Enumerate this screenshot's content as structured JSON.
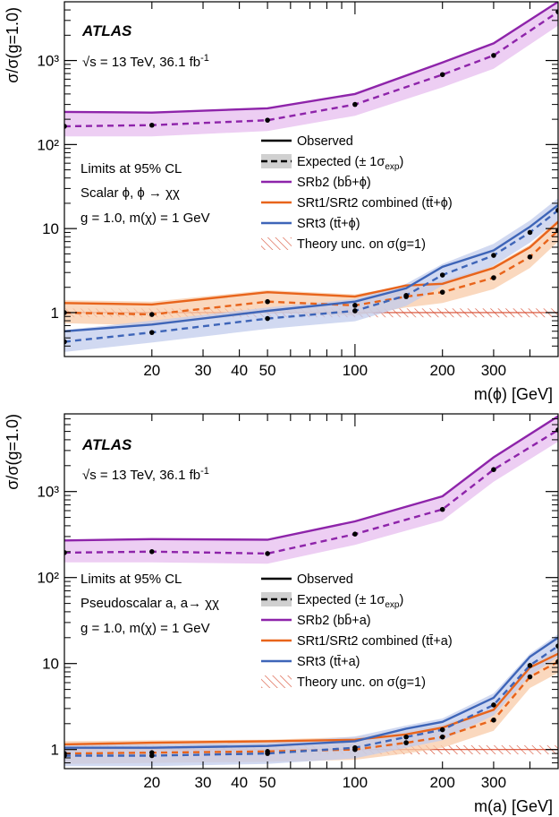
{
  "colors": {
    "SRb2": "#8E24AA",
    "SRb2_band": "#E7BDEF",
    "SRt12": "#E8641B",
    "SRt12_band": "#F8CBA8",
    "SRt3": "#3E65B8",
    "SRt3_band": "#C2CCEC",
    "theory": "#D6492D",
    "expected_band": "#D0D0D0"
  },
  "chart_data": [
    {
      "type": "line",
      "atlas_label": "ATLAS",
      "energy_label": "√s = 13 TeV, 36.1 fb",
      "energy_sup": "-1",
      "info_lines": [
        "Limits at 95% CL",
        "Scalar ϕ, ϕ → χχ",
        "g = 1.0,  m(χ) = 1 GeV"
      ],
      "xlabel": "m(ϕ) [GeV]",
      "ylabel": "σ/σ(g=1.0)",
      "x_scale": "log",
      "y_scale": "log",
      "xlim": [
        10,
        500
      ],
      "ylim": [
        0.3,
        5000
      ],
      "x_ticks": [
        20,
        30,
        40,
        50,
        100,
        200,
        300
      ],
      "x_tick_labels": [
        "20",
        "30",
        "40",
        "50",
        "100",
        "200",
        "300"
      ],
      "y_tick_labels": [
        "1",
        "10",
        "10²",
        "10³"
      ],
      "legend": [
        {
          "label": "Observed",
          "style": "observed"
        },
        {
          "label": "Expected (± 1σ",
          "sub": "exp",
          "tail": ")",
          "style": "expected"
        },
        {
          "label": "SRb2 (bb̄+ϕ)",
          "style": "SRb2"
        },
        {
          "label": "SRt1/SRt2 combined (tt̄+ϕ)",
          "style": "SRt12"
        },
        {
          "label": "SRt3 (tt̄+ϕ)",
          "style": "SRt3"
        },
        {
          "label": "Theory unc. on σ(g=1)",
          "style": "theory"
        }
      ],
      "theory_band": [
        0.88,
        1.12
      ],
      "series": [
        {
          "name": "SRb2 (bb̄+ϕ)",
          "key": "SRb2",
          "x": [
            10,
            20,
            50,
            100,
            200,
            300,
            500
          ],
          "observed": [
            245,
            240,
            270,
            400,
            950,
            1600,
            5000
          ],
          "expected": [
            165,
            170,
            195,
            300,
            680,
            1150,
            3800
          ],
          "band_lo": [
            125,
            125,
            145,
            220,
            480,
            800,
            2600
          ],
          "band_hi": [
            240,
            240,
            270,
            410,
            950,
            1600,
            5000
          ]
        },
        {
          "name": "SRt1/SRt2 combined (tt̄+ϕ)",
          "key": "SRt12",
          "x": [
            10,
            20,
            50,
            100,
            150,
            200,
            300,
            400,
            500
          ],
          "observed": [
            1.3,
            1.25,
            1.75,
            1.55,
            2.1,
            2.2,
            3.4,
            6.0,
            12.0
          ],
          "expected": [
            1.0,
            0.95,
            1.35,
            1.22,
            1.55,
            1.75,
            2.6,
            4.6,
            9.5
          ],
          "band_lo": [
            0.75,
            0.7,
            1.0,
            0.92,
            1.15,
            1.3,
            1.9,
            3.4,
            7.0
          ],
          "band_hi": [
            1.4,
            1.35,
            1.85,
            1.65,
            2.1,
            2.4,
            3.6,
            6.4,
            13.0
          ]
        },
        {
          "name": "SRt3 (tt̄+ϕ)",
          "key": "SRt3",
          "x": [
            10,
            20,
            50,
            100,
            150,
            200,
            300,
            400,
            500
          ],
          "observed": [
            0.6,
            0.72,
            1.05,
            1.35,
            1.95,
            3.5,
            5.5,
            10.5,
            19.0
          ],
          "expected": [
            0.45,
            0.58,
            0.85,
            1.05,
            1.6,
            2.8,
            4.8,
            9.0,
            16.5
          ],
          "band_lo": [
            0.34,
            0.44,
            0.64,
            0.79,
            1.2,
            2.1,
            3.6,
            6.8,
            12.5
          ],
          "band_hi": [
            0.62,
            0.8,
            1.15,
            1.45,
            2.2,
            3.8,
            6.6,
            12.5,
            23.0
          ]
        }
      ]
    },
    {
      "type": "line",
      "atlas_label": "ATLAS",
      "energy_label": "√s = 13 TeV, 36.1 fb",
      "energy_sup": "-1",
      "info_lines": [
        "Limits at 95% CL",
        "Pseudoscalar a, a→ χχ",
        "g = 1.0,  m(χ) = 1 GeV"
      ],
      "xlabel": "m(a) [GeV]",
      "ylabel": "σ/σ(g=1.0)",
      "x_scale": "log",
      "y_scale": "log",
      "xlim": [
        10,
        500
      ],
      "ylim": [
        0.6,
        8000
      ],
      "x_ticks": [
        20,
        30,
        40,
        50,
        100,
        200,
        300
      ],
      "x_tick_labels": [
        "20",
        "30",
        "40",
        "50",
        "100",
        "200",
        "300"
      ],
      "y_tick_labels": [
        "1",
        "10",
        "10²",
        "10³"
      ],
      "legend": [
        {
          "label": "Observed",
          "style": "observed"
        },
        {
          "label": "Expected (± 1σ",
          "sub": "exp",
          "tail": ")",
          "style": "expected"
        },
        {
          "label": "SRb2 (bb̄+a)",
          "style": "SRb2"
        },
        {
          "label": "SRt1/SRt2 combined (tt̄+a)",
          "style": "SRt12"
        },
        {
          "label": "SRt3 (tt̄+a)",
          "style": "SRt3"
        },
        {
          "label": "Theory unc. on σ(g=1)",
          "style": "theory"
        }
      ],
      "theory_band": [
        0.88,
        1.12
      ],
      "series": [
        {
          "name": "SRb2 (bb̄+a)",
          "key": "SRb2",
          "x": [
            10,
            20,
            50,
            100,
            200,
            300,
            500
          ],
          "observed": [
            270,
            280,
            275,
            450,
            880,
            2500,
            7500
          ],
          "expected": [
            195,
            200,
            190,
            320,
            620,
            1800,
            5200
          ],
          "band_lo": [
            150,
            150,
            145,
            240,
            460,
            1300,
            3800
          ],
          "band_hi": [
            270,
            275,
            265,
            440,
            850,
            2500,
            7200
          ]
        },
        {
          "name": "SRt1/SRt2 combined (tt̄+a)",
          "key": "SRt12",
          "x": [
            10,
            20,
            50,
            100,
            150,
            200,
            300,
            400,
            500
          ],
          "observed": [
            1.15,
            1.2,
            1.25,
            1.3,
            1.5,
            1.8,
            2.9,
            9.0,
            13.0
          ],
          "expected": [
            0.9,
            0.92,
            0.95,
            1.0,
            1.2,
            1.4,
            2.2,
            7.0,
            10.5
          ],
          "band_lo": [
            0.68,
            0.7,
            0.72,
            0.76,
            0.9,
            1.05,
            1.65,
            5.2,
            7.8
          ],
          "band_hi": [
            1.25,
            1.28,
            1.3,
            1.4,
            1.65,
            1.95,
            3.0,
            9.8,
            14.5
          ]
        },
        {
          "name": "SRt3 (tt̄+a)",
          "key": "SRt3",
          "x": [
            10,
            20,
            50,
            100,
            150,
            200,
            300,
            400,
            500
          ],
          "observed": [
            1.05,
            1.05,
            1.1,
            1.25,
            1.75,
            2.1,
            4.0,
            12.0,
            20.0
          ],
          "expected": [
            0.85,
            0.85,
            0.9,
            1.05,
            1.4,
            1.7,
            3.3,
            9.5,
            16.0
          ],
          "band_lo": [
            0.64,
            0.64,
            0.68,
            0.79,
            1.05,
            1.28,
            2.5,
            7.2,
            12.0
          ],
          "band_hi": [
            1.15,
            1.15,
            1.2,
            1.42,
            1.9,
            2.3,
            4.5,
            13.0,
            22.0
          ]
        }
      ]
    }
  ]
}
